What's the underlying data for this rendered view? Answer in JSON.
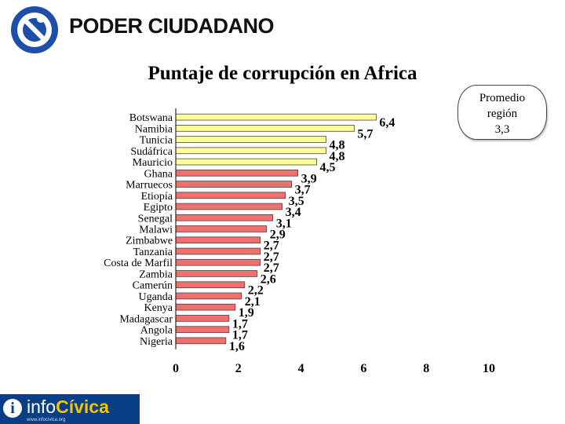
{
  "header": {
    "brand": "PODER CIUDADANO",
    "logo_icon": "poder-ciudadano-logo-icon"
  },
  "callout": {
    "line1": "Promedio",
    "line2": "región",
    "line3": "3,3"
  },
  "footer": {
    "logo_icon": "info-i-icon",
    "brand_part1": "info",
    "brand_part2": "Cívica",
    "subtext": "www.infocivica.org"
  },
  "colors": {
    "highlight_bar": "#ffff99",
    "normal_bar": "#f07070",
    "bar_stroke": "#444444",
    "footer_blue": "#0a3f86",
    "footer_yellow": "#f3c200"
  },
  "chart_data": {
    "type": "bar",
    "orientation": "horizontal",
    "title": "Puntaje de corrupción en Africa",
    "categories": [
      "Botswana",
      "Namibia",
      "Tunicia",
      "Sudáfrica",
      "Mauricio",
      "Ghana",
      "Marruecos",
      "Etiopía",
      "Egipto",
      "Senegal",
      "Malawi",
      "Zimbabwe",
      "Tanzania",
      "Costa de Marfil",
      "Zambia",
      "Camerún",
      "Uganda",
      "Kenya",
      "Madagascar",
      "Angola",
      "Nigeria"
    ],
    "values": [
      6.4,
      5.7,
      4.8,
      4.8,
      4.5,
      3.9,
      3.7,
      3.5,
      3.4,
      3.1,
      2.9,
      2.7,
      2.7,
      2.7,
      2.6,
      2.2,
      2.1,
      1.9,
      1.7,
      1.7,
      1.6
    ],
    "value_labels": [
      "6,4",
      "5,7",
      "4,8",
      "4,8",
      "4,5",
      "3,9",
      "3,7",
      "3,5",
      "3,4",
      "3,1",
      "2,9",
      "2,7",
      "2,7",
      "2,7",
      "2,6",
      "2,2",
      "2,1",
      "1,9",
      "1,7",
      "1,7",
      "1,6"
    ],
    "bar_color_groups": [
      "highlight",
      "highlight",
      "highlight",
      "highlight",
      "highlight",
      "normal",
      "normal",
      "normal",
      "normal",
      "normal",
      "normal",
      "normal",
      "normal",
      "normal",
      "normal",
      "normal",
      "normal",
      "normal",
      "normal",
      "normal",
      "normal"
    ],
    "x_ticks": [
      "0",
      "2",
      "4",
      "6",
      "8",
      "10"
    ],
    "xlim": [
      0,
      10
    ],
    "xlabel": "",
    "ylabel": "",
    "grid": false,
    "legend": "none"
  }
}
